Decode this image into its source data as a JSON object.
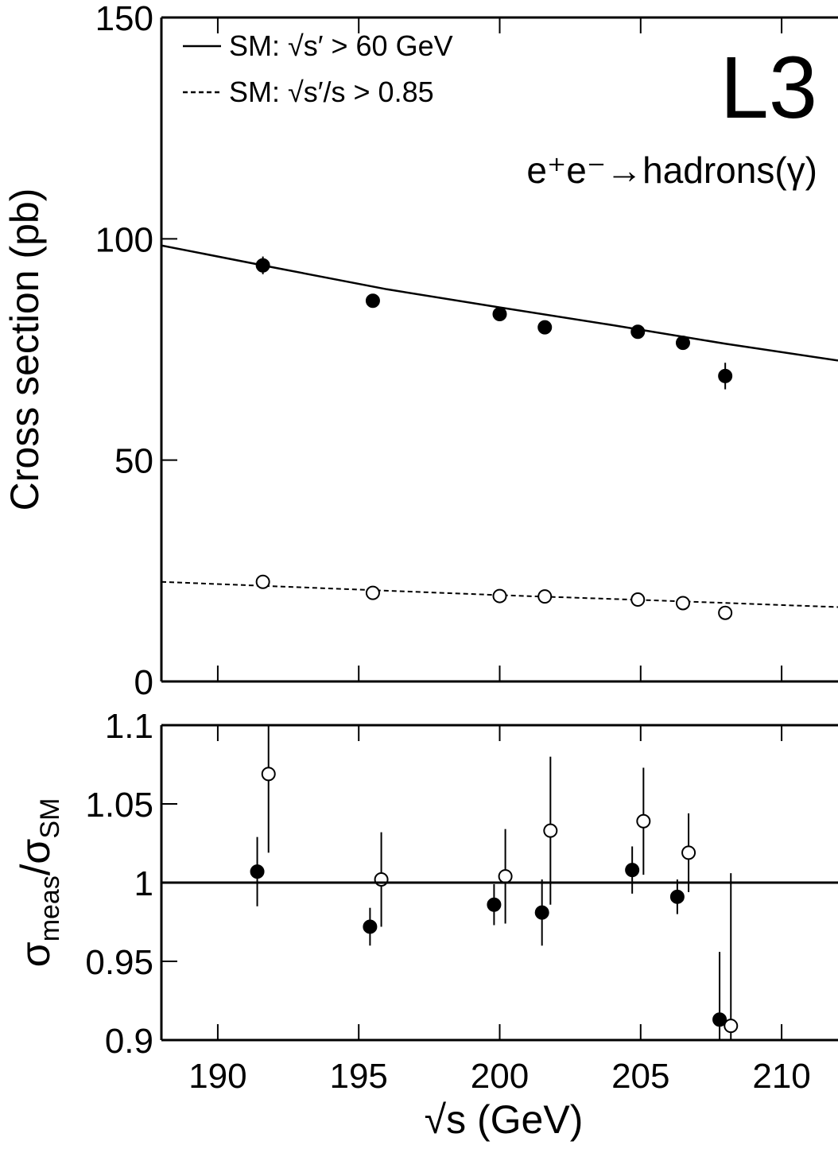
{
  "chart_data": [
    {
      "type": "scatter",
      "ylabel": "Cross section (pb)",
      "xlim": [
        188,
        212
      ],
      "ylim": [
        0,
        150
      ],
      "xticks": [
        190,
        195,
        200,
        205,
        210
      ],
      "yticks": [
        0,
        50,
        100,
        150
      ],
      "annotations": [
        "L3",
        "e⁺e⁻→hadrons(γ)"
      ],
      "legend": "upper left",
      "series": [
        {
          "name": "SM: √s′ > 60 GeV",
          "kind": "line",
          "style": "solid",
          "color": "#000000",
          "x": [
            188,
            192,
            196,
            200,
            204,
            208,
            212
          ],
          "values": [
            98.5,
            93.5,
            88.6,
            84.5,
            80.5,
            76.3,
            72.5
          ]
        },
        {
          "name": "SM: √s′/s > 0.85",
          "kind": "line",
          "style": "dashed",
          "color": "#000000",
          "x": [
            188,
            194,
            200,
            206,
            212
          ],
          "values": [
            22.5,
            21,
            19.5,
            18.2,
            16.8
          ]
        },
        {
          "kind": "points",
          "fill": "filled",
          "color": "#000000",
          "x": [
            191.6,
            195.5,
            200,
            201.6,
            204.9,
            206.5,
            208
          ],
          "values": [
            94,
            86,
            83,
            80,
            79,
            76.5,
            69
          ],
          "errors": [
            2,
            1,
            1,
            1,
            1,
            1,
            3
          ]
        },
        {
          "kind": "points",
          "fill": "open",
          "color": "#000000",
          "x": [
            191.6,
            195.5,
            200,
            201.6,
            204.9,
            206.5,
            208
          ],
          "values": [
            22.5,
            20,
            19.3,
            19.2,
            18.5,
            17.7,
            15.5
          ],
          "errors": [
            0.5,
            0.4,
            0.4,
            0.4,
            0.4,
            0.4,
            0.5
          ]
        }
      ]
    },
    {
      "type": "scatter",
      "xlabel": "√s (GeV)",
      "ylabel": [
        "σ",
        "meas",
        "/σ",
        "SM"
      ],
      "xlim": [
        188,
        212
      ],
      "ylim": [
        0.9,
        1.1
      ],
      "xticks": [
        190,
        195,
        200,
        205,
        210
      ],
      "yticks": [
        0.9,
        0.95,
        1,
        1.05,
        1.1
      ],
      "hline": 1,
      "series": [
        {
          "kind": "points",
          "fill": "filled",
          "color": "#000000",
          "x": [
            191.4,
            195.4,
            199.8,
            201.5,
            204.7,
            206.3,
            207.8
          ],
          "values": [
            1.007,
            0.972,
            0.986,
            0.981,
            1.008,
            0.991,
            0.913
          ],
          "errors": [
            0.022,
            0.012,
            0.013,
            0.021,
            0.015,
            0.011,
            0.043
          ]
        },
        {
          "kind": "points",
          "fill": "open",
          "color": "#000000",
          "x": [
            191.8,
            195.8,
            200.2,
            201.8,
            205.1,
            206.7,
            208.2
          ],
          "values": [
            1.069,
            1.002,
            1.004,
            1.033,
            1.039,
            1.019,
            0.909
          ],
          "errors": [
            0.05,
            0.03,
            0.03,
            0.047,
            0.034,
            0.025,
            0.097
          ]
        }
      ]
    }
  ]
}
